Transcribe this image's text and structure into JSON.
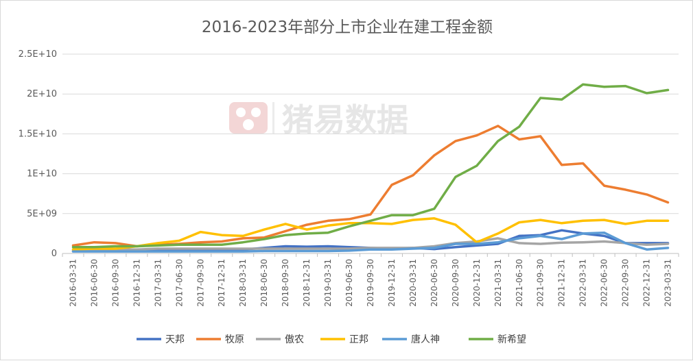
{
  "chart_data": {
    "type": "line",
    "title": "2016-2023年部分上市企业在建工程金额",
    "watermark": "猪易数据",
    "ylim": [
      0,
      25000000000
    ],
    "yticks": [
      {
        "value": 0,
        "label": "0"
      },
      {
        "value": 5000000000,
        "label": "5E+09"
      },
      {
        "value": 10000000000,
        "label": "1E+10"
      },
      {
        "value": 15000000000,
        "label": "1.5E+10"
      },
      {
        "value": 20000000000,
        "label": "2E+10"
      },
      {
        "value": 25000000000,
        "label": "2.5E+10"
      }
    ],
    "categories": [
      "2016-03-31",
      "2016-06-30",
      "2016-09-30",
      "2016-12-31",
      "2017-03-31",
      "2017-06-30",
      "2017-09-30",
      "2017-12-31",
      "2018-03-31",
      "2018-06-30",
      "2018-09-30",
      "2018-12-31",
      "2019-03-31",
      "2019-06-30",
      "2019-09-30",
      "2019-12-31",
      "2020-03-31",
      "2020-06-30",
      "2020-09-30",
      "2020-12-31",
      "2021-03-31",
      "2021-06-30",
      "2021-09-30",
      "2021-12-31",
      "2022-03-31",
      "2022-06-30",
      "2022-09-30",
      "2022-12-31",
      "2023-03-31"
    ],
    "series": [
      {
        "name": "天邦",
        "color": "#4472c4",
        "values": [
          0.3,
          0.3,
          0.3,
          0.3,
          0.35,
          0.4,
          0.45,
          0.35,
          0.5,
          0.7,
          0.9,
          0.85,
          0.9,
          0.8,
          0.7,
          0.6,
          0.7,
          0.55,
          0.8,
          1.0,
          1.2,
          2.2,
          2.3,
          2.9,
          2.5,
          2.2,
          1.3,
          1.3,
          1.3
        ]
      },
      {
        "name": "牧原",
        "color": "#ed7d31",
        "values": [
          1.0,
          1.4,
          1.3,
          0.9,
          1.1,
          1.2,
          1.4,
          1.5,
          1.9,
          2.0,
          2.8,
          3.6,
          4.1,
          4.3,
          4.9,
          8.6,
          9.8,
          12.3,
          14.1,
          14.8,
          16.0,
          14.3,
          14.7,
          11.1,
          11.3,
          8.5,
          8.0,
          7.4,
          6.4
        ]
      },
      {
        "name": "傲农",
        "color": "#a5a5a5",
        "values": [
          0.5,
          0.5,
          0.5,
          0.5,
          0.6,
          0.6,
          0.6,
          0.6,
          0.6,
          0.6,
          0.6,
          0.6,
          0.6,
          0.6,
          0.7,
          0.7,
          0.7,
          0.9,
          1.3,
          1.5,
          1.9,
          1.3,
          1.2,
          1.35,
          1.4,
          1.5,
          1.3,
          1.1,
          1.2
        ]
      },
      {
        "name": "正邦",
        "color": "#ffc000",
        "values": [
          0.5,
          0.6,
          0.6,
          0.9,
          1.3,
          1.6,
          2.7,
          2.3,
          2.2,
          3.0,
          3.7,
          3.0,
          3.5,
          3.8,
          3.8,
          3.7,
          4.2,
          4.4,
          3.6,
          1.4,
          2.5,
          3.9,
          4.2,
          3.8,
          4.1,
          4.2,
          3.7,
          4.1,
          4.1
        ]
      },
      {
        "name": "唐人神",
        "color": "#5b9bd5",
        "values": [
          0.25,
          0.25,
          0.25,
          0.25,
          0.25,
          0.25,
          0.25,
          0.25,
          0.25,
          0.3,
          0.3,
          0.3,
          0.3,
          0.35,
          0.5,
          0.5,
          0.6,
          0.7,
          1.2,
          1.2,
          1.4,
          1.9,
          2.2,
          1.8,
          2.5,
          2.6,
          1.3,
          0.5,
          0.7
        ]
      },
      {
        "name": "新希望",
        "color": "#70ad47",
        "values": [
          0.8,
          0.8,
          0.9,
          0.9,
          1.0,
          1.1,
          1.1,
          1.1,
          1.4,
          1.8,
          2.3,
          2.5,
          2.6,
          3.4,
          4.1,
          4.8,
          4.8,
          5.6,
          9.6,
          11.0,
          14.1,
          15.9,
          19.5,
          19.3,
          21.2,
          20.9,
          21.0,
          20.1,
          20.5
        ]
      }
    ],
    "value_unit_multiplier": 1000000000,
    "grid": true,
    "legend_position": "bottom"
  }
}
